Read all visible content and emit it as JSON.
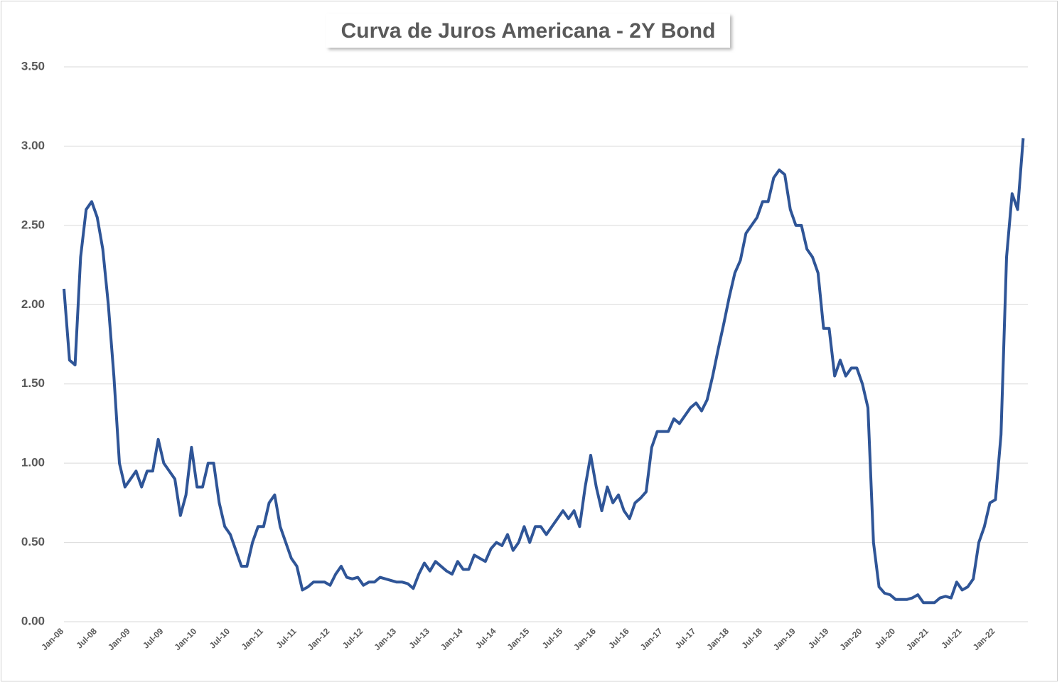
{
  "chart_data": {
    "type": "line",
    "title": "Curva de Juros Americana - 2Y Bond",
    "categories": [
      "Jan-08",
      null,
      null,
      null,
      null,
      null,
      "Jul-08",
      null,
      null,
      null,
      null,
      null,
      "Jan-09",
      null,
      null,
      null,
      null,
      null,
      "Jul-09",
      null,
      null,
      null,
      null,
      null,
      "Jan-10",
      null,
      null,
      null,
      null,
      null,
      "Jul-10",
      null,
      null,
      null,
      null,
      null,
      "Jan-11",
      null,
      null,
      null,
      null,
      null,
      "Jul-11",
      null,
      null,
      null,
      null,
      null,
      "Jan-12",
      null,
      null,
      null,
      null,
      null,
      "Jul-12",
      null,
      null,
      null,
      null,
      null,
      "Jan-13",
      null,
      null,
      null,
      null,
      null,
      "Jul-13",
      null,
      null,
      null,
      null,
      null,
      "Jan-14",
      null,
      null,
      null,
      null,
      null,
      "Jul-14",
      null,
      null,
      null,
      null,
      null,
      "Jan-15",
      null,
      null,
      null,
      null,
      null,
      "Jul-15",
      null,
      null,
      null,
      null,
      null,
      "Jan-16",
      null,
      null,
      null,
      null,
      null,
      "Jul-16",
      null,
      null,
      null,
      null,
      null,
      "Jan-17",
      null,
      null,
      null,
      null,
      null,
      "Jul-17",
      null,
      null,
      null,
      null,
      null,
      "Jan-18",
      null,
      null,
      null,
      null,
      null,
      "Jul-18",
      null,
      null,
      null,
      null,
      null,
      "Jan-19",
      null,
      null,
      null,
      null,
      null,
      "Jul-19",
      null,
      null,
      null,
      null,
      null,
      "Jan-20",
      null,
      null,
      null,
      null,
      null,
      "Jul-20",
      null,
      null,
      null,
      null,
      null,
      "Jan-21",
      null,
      null,
      null,
      null,
      null,
      "Jul-21",
      null,
      null,
      null,
      null,
      null,
      "Jan-22",
      null,
      null,
      null,
      null,
      null
    ],
    "series": [
      {
        "color": "#2f5597",
        "values": [
          2.1,
          1.65,
          1.62,
          2.3,
          2.6,
          2.65,
          2.55,
          2.35,
          2.0,
          1.55,
          1.0,
          0.85,
          0.9,
          0.95,
          0.85,
          0.95,
          0.95,
          1.15,
          1.0,
          0.95,
          0.9,
          0.67,
          0.8,
          1.1,
          0.85,
          0.85,
          1.0,
          1.0,
          0.75,
          0.6,
          0.55,
          0.45,
          0.35,
          0.35,
          0.5,
          0.6,
          0.6,
          0.75,
          0.8,
          0.6,
          0.5,
          0.4,
          0.35,
          0.2,
          0.22,
          0.25,
          0.25,
          0.25,
          0.23,
          0.3,
          0.35,
          0.28,
          0.27,
          0.28,
          0.23,
          0.25,
          0.25,
          0.28,
          0.27,
          0.26,
          0.25,
          0.25,
          0.24,
          0.21,
          0.3,
          0.37,
          0.32,
          0.38,
          0.35,
          0.32,
          0.3,
          0.38,
          0.33,
          0.33,
          0.42,
          0.4,
          0.38,
          0.46,
          0.5,
          0.48,
          0.55,
          0.45,
          0.5,
          0.6,
          0.5,
          0.6,
          0.6,
          0.55,
          0.6,
          0.65,
          0.7,
          0.65,
          0.7,
          0.6,
          0.85,
          1.05,
          0.85,
          0.7,
          0.85,
          0.75,
          0.8,
          0.7,
          0.65,
          0.75,
          0.78,
          0.82,
          1.1,
          1.2,
          1.2,
          1.2,
          1.28,
          1.25,
          1.3,
          1.35,
          1.38,
          1.33,
          1.4,
          1.55,
          1.72,
          1.88,
          2.05,
          2.2,
          2.28,
          2.45,
          2.5,
          2.55,
          2.65,
          2.65,
          2.8,
          2.85,
          2.82,
          2.6,
          2.5,
          2.5,
          2.35,
          2.3,
          2.2,
          1.85,
          1.85,
          1.55,
          1.65,
          1.55,
          1.6,
          1.6,
          1.5,
          1.35,
          0.5,
          0.22,
          0.18,
          0.17,
          0.14,
          0.14,
          0.14,
          0.15,
          0.17,
          0.12,
          0.12,
          0.12,
          0.15,
          0.16,
          0.15,
          0.25,
          0.2,
          0.22,
          0.27,
          0.5,
          0.6,
          0.75,
          0.77,
          1.18,
          2.3,
          2.7,
          2.6,
          3.05
        ]
      }
    ],
    "ylim": [
      0,
      3.5
    ],
    "yticks": [
      {
        "value": 0,
        "label": "0.00"
      },
      {
        "value": 0.5,
        "label": "0.50"
      },
      {
        "value": 1,
        "label": "1.00"
      },
      {
        "value": 1.5,
        "label": "1.50"
      },
      {
        "value": 2,
        "label": "2.00"
      },
      {
        "value": 2.5,
        "label": "2.50"
      },
      {
        "value": 3,
        "label": "3.00"
      },
      {
        "value": 3.5,
        "label": "3.50"
      }
    ],
    "grid": true
  }
}
